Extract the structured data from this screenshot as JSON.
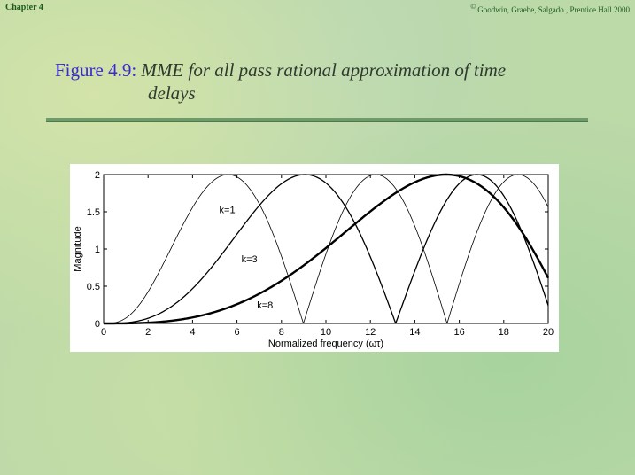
{
  "header": {
    "chapter": "Chapter 4",
    "credit_symbol": "©",
    "credit": "Goodwin, Graebe, Salgado , Prentice Hall 2000"
  },
  "figure": {
    "number": "Figure 4.9:",
    "title_line1": "MME for all pass rational approximation of time",
    "title_line2": "delays"
  },
  "chart_data": {
    "type": "line",
    "title": "",
    "xlabel": "Normalized frequency (ωτ)",
    "ylabel": "Magnitude",
    "xlim": [
      0,
      20
    ],
    "ylim": [
      0,
      2
    ],
    "xticks": [
      0,
      2,
      4,
      6,
      8,
      10,
      12,
      14,
      16,
      18,
      20
    ],
    "yticks": [
      0,
      0.5,
      1,
      1.5,
      2
    ],
    "xtick_labels": [
      "0",
      "2",
      "4",
      "6",
      "8",
      "10",
      "12",
      "14",
      "16",
      "18",
      "20"
    ],
    "ytick_labels": [
      "0",
      "0.5",
      "1",
      "1.5",
      "2"
    ],
    "grid": false,
    "series": [
      {
        "name": "k=1",
        "line_style": "thin",
        "formula": "2|sin(ωτ/2 - atan(ωτ/2))|"
      },
      {
        "name": "k=3",
        "line_style": "medium",
        "formula": "2|sin(ωτ/2 - 3·atan(ωτ/6))|"
      },
      {
        "name": "k=8",
        "line_style": "thick",
        "formula": "2|sin(ωτ/2 - 8·atan(ωτ/16))|"
      }
    ],
    "annotations": [
      {
        "text": "k=1",
        "x": 5.2,
        "y": 1.48
      },
      {
        "text": "k=3",
        "x": 6.2,
        "y": 0.82
      },
      {
        "text": "k=8",
        "x": 6.9,
        "y": 0.2
      }
    ]
  }
}
